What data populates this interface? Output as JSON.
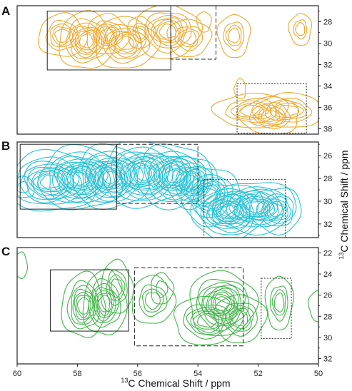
{
  "chart_data": [
    {
      "panel": "A",
      "type": "contour",
      "color": "#f0a830",
      "x_range": [
        60,
        50
      ],
      "y_range": [
        38.5,
        26.5
      ],
      "y_ticks": [
        28,
        30,
        32,
        34,
        36,
        38
      ],
      "y_tick_labels": [
        "28",
        "30",
        "32",
        "34",
        "36",
        "38"
      ],
      "peaks": [
        {
          "x": 58.5,
          "y": 29.3,
          "sx": 0.28,
          "sy": 0.7,
          "levels": 5
        },
        {
          "x": 57.7,
          "y": 29.8,
          "sx": 0.33,
          "sy": 0.95,
          "levels": 8
        },
        {
          "x": 57.0,
          "y": 29.2,
          "sx": 0.25,
          "sy": 0.65,
          "levels": 5
        },
        {
          "x": 56.4,
          "y": 30.0,
          "sx": 0.38,
          "sy": 0.85,
          "levels": 7
        },
        {
          "x": 55.9,
          "y": 29.0,
          "sx": 0.15,
          "sy": 0.5,
          "levels": 3
        },
        {
          "x": 55.0,
          "y": 28.9,
          "sx": 0.38,
          "sy": 0.9,
          "levels": 7
        },
        {
          "x": 54.3,
          "y": 29.5,
          "sx": 0.25,
          "sy": 0.6,
          "levels": 4
        },
        {
          "x": 53.8,
          "y": 28.0,
          "sx": 0.07,
          "sy": 0.3,
          "levels": 1
        },
        {
          "x": 52.8,
          "y": 29.3,
          "sx": 0.18,
          "sy": 0.7,
          "levels": 4
        },
        {
          "x": 50.6,
          "y": 28.7,
          "sx": 0.12,
          "sy": 0.5,
          "levels": 3
        },
        {
          "x": 52.2,
          "y": 36.3,
          "sx": 0.45,
          "sy": 0.55,
          "levels": 5
        },
        {
          "x": 51.6,
          "y": 36.8,
          "sx": 0.35,
          "sy": 0.6,
          "levels": 5
        },
        {
          "x": 51.0,
          "y": 36.3,
          "sx": 0.4,
          "sy": 0.55,
          "levels": 5
        },
        {
          "x": 52.6,
          "y": 34.3,
          "sx": 0.05,
          "sy": 0.3,
          "levels": 1
        }
      ],
      "boxes": [
        {
          "style": "solid",
          "x": [
            59.0,
            54.9
          ],
          "y": [
            27.0,
            32.5
          ]
        },
        {
          "style": "dashed",
          "x": [
            54.9,
            53.4
          ],
          "y": [
            26.5,
            31.5
          ]
        },
        {
          "style": "dotted",
          "x": [
            52.7,
            50.4
          ],
          "y": [
            33.8,
            38.4
          ]
        }
      ]
    },
    {
      "panel": "B",
      "type": "contour",
      "color": "#29c2d6",
      "x_range": [
        60,
        50
      ],
      "y_range": [
        33.2,
        24.8
      ],
      "y_ticks": [
        26,
        28,
        30,
        32
      ],
      "y_tick_labels": [
        "26",
        "28",
        "30",
        "32"
      ],
      "peaks": [
        {
          "x": 59.8,
          "y": 28.8,
          "sx": 0.12,
          "sy": 0.3,
          "levels": 2
        },
        {
          "x": 58.9,
          "y": 28.3,
          "sx": 0.55,
          "sy": 0.95,
          "levels": 10
        },
        {
          "x": 57.9,
          "y": 28.0,
          "sx": 0.5,
          "sy": 1.0,
          "levels": 12
        },
        {
          "x": 56.9,
          "y": 27.9,
          "sx": 0.45,
          "sy": 1.0,
          "levels": 12
        },
        {
          "x": 55.8,
          "y": 27.6,
          "sx": 0.5,
          "sy": 1.05,
          "levels": 12
        },
        {
          "x": 54.8,
          "y": 27.8,
          "sx": 0.45,
          "sy": 1.0,
          "levels": 11
        },
        {
          "x": 54.2,
          "y": 28.3,
          "sx": 0.3,
          "sy": 0.8,
          "levels": 8
        },
        {
          "x": 53.6,
          "y": 29.5,
          "sx": 0.35,
          "sy": 0.9,
          "levels": 8
        },
        {
          "x": 53.0,
          "y": 30.9,
          "sx": 0.45,
          "sy": 0.9,
          "levels": 12
        },
        {
          "x": 52.1,
          "y": 30.5,
          "sx": 0.5,
          "sy": 0.8,
          "levels": 10
        },
        {
          "x": 51.4,
          "y": 30.8,
          "sx": 0.3,
          "sy": 0.7,
          "levels": 6
        }
      ],
      "boxes": [
        {
          "style": "solid",
          "x": [
            59.9,
            56.7
          ],
          "y": [
            25.0,
            30.7
          ]
        },
        {
          "style": "dashed",
          "x": [
            56.7,
            54.0
          ],
          "y": [
            25.0,
            30.2
          ]
        },
        {
          "style": "dotted",
          "x": [
            53.8,
            51.1
          ],
          "y": [
            28.1,
            33.2
          ]
        }
      ]
    },
    {
      "panel": "C",
      "type": "contour",
      "color": "#43b64a",
      "x_range": [
        60,
        50
      ],
      "y_range": [
        32.5,
        21.5
      ],
      "y_ticks": [
        22,
        24,
        26,
        28,
        30,
        32
      ],
      "y_tick_labels": [
        "22",
        "24",
        "26",
        "28",
        "30",
        "32"
      ],
      "x_ticks": [
        60,
        58,
        56,
        54,
        52,
        50
      ],
      "x_tick_labels": [
        "60",
        "58",
        "56",
        "54",
        "52",
        "50"
      ],
      "xlabel_sup": "13",
      "xlabel_main": "C Chemical Shift / ppm",
      "peaks": [
        {
          "x": 59.9,
          "y": 23.2,
          "sx": 0.07,
          "sy": 0.4,
          "levels": 1
        },
        {
          "x": 57.8,
          "y": 27.0,
          "sx": 0.25,
          "sy": 1.1,
          "levels": 7
        },
        {
          "x": 57.1,
          "y": 26.8,
          "sx": 0.25,
          "sy": 1.1,
          "levels": 7
        },
        {
          "x": 56.7,
          "y": 25.3,
          "sx": 0.18,
          "sy": 0.9,
          "levels": 4
        },
        {
          "x": 55.5,
          "y": 26.5,
          "sx": 0.25,
          "sy": 0.8,
          "levels": 4
        },
        {
          "x": 55.2,
          "y": 25.4,
          "sx": 0.12,
          "sy": 0.5,
          "levels": 2
        },
        {
          "x": 53.2,
          "y": 26.8,
          "sx": 0.4,
          "sy": 1.1,
          "levels": 10
        },
        {
          "x": 53.7,
          "y": 28.4,
          "sx": 0.4,
          "sy": 0.8,
          "levels": 6
        },
        {
          "x": 52.6,
          "y": 28.2,
          "sx": 0.3,
          "sy": 0.8,
          "levels": 5
        },
        {
          "x": 51.3,
          "y": 26.7,
          "sx": 0.15,
          "sy": 0.9,
          "levels": 4
        },
        {
          "x": 50.0,
          "y": 27.0,
          "sx": 0.1,
          "sy": 0.5,
          "levels": 1
        }
      ],
      "boxes": [
        {
          "style": "solid",
          "x": [
            58.9,
            56.3
          ],
          "y": [
            23.6,
            29.4
          ]
        },
        {
          "style": "dashed",
          "x": [
            56.1,
            52.5
          ],
          "y": [
            23.4,
            30.8
          ]
        },
        {
          "style": "dotted",
          "x": [
            51.9,
            50.9
          ],
          "y": [
            24.4,
            30.1
          ]
        }
      ]
    }
  ],
  "y_axis_title_sup": "13",
  "y_axis_title_main": "C Chemical Shift / ppm",
  "panel_labels": [
    "A",
    "B",
    "C"
  ]
}
